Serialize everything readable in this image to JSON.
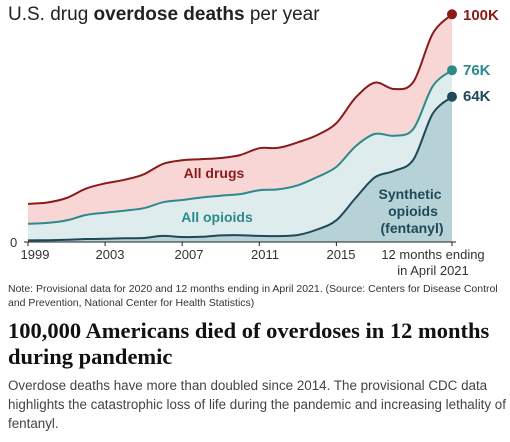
{
  "title": {
    "prefix": "U.S. drug ",
    "emphasis": "overdose deaths",
    "suffix": " per year"
  },
  "chart_data": {
    "type": "area",
    "x_ticks": [
      "1999",
      "2003",
      "2007",
      "2011",
      "2015",
      "12 months ending",
      "in April 2021"
    ],
    "y_ticks": [
      "0"
    ],
    "ylim": [
      0,
      100000
    ],
    "x": [
      "1999",
      "2000",
      "2001",
      "2002",
      "2003",
      "2004",
      "2005",
      "2006",
      "2007",
      "2008",
      "2009",
      "2010",
      "2011",
      "2012",
      "2013",
      "2014",
      "2015",
      "2016",
      "2017",
      "2018",
      "2019",
      "2020",
      "12 months ending in April 2021"
    ],
    "series": [
      {
        "name": "All drugs",
        "color": "#f9d6d6",
        "line_color": "#8b1a1a",
        "end_label": "100K",
        "values": [
          16800,
          17400,
          19400,
          23500,
          25800,
          27400,
          29800,
          34400,
          36000,
          36500,
          37000,
          38300,
          41300,
          41500,
          43900,
          47100,
          52400,
          63600,
          70200,
          67400,
          70600,
          91800,
          100300
        ]
      },
      {
        "name": "All opioids",
        "color": "#dfecee",
        "line_color": "#2b8a8a",
        "end_label": "76K",
        "values": [
          8000,
          8400,
          9500,
          11900,
          12900,
          13800,
          14900,
          17500,
          18500,
          19600,
          20400,
          21100,
          22800,
          23200,
          25000,
          28600,
          33100,
          42200,
          47600,
          46800,
          49900,
          68600,
          75700
        ]
      },
      {
        "name": "Synthetic opioids (fentanyl)",
        "color": "#b6d2d6",
        "line_color": "#1f4858",
        "end_label": "64K",
        "values": [
          700,
          800,
          950,
          1300,
          1400,
          1650,
          1750,
          2700,
          2200,
          2300,
          2900,
          3000,
          2700,
          2600,
          3100,
          5500,
          9600,
          19400,
          28500,
          31300,
          36400,
          56500,
          64000
        ]
      }
    ],
    "area_labels": [
      "All drugs",
      "All opioids",
      "Synthetic",
      "opioids",
      "(fentanyl)"
    ]
  },
  "note": "Note: Provisional data for 2020 and 12 months ending in April 2021. (Source: Centers for Disease Control and Prevention, National Center for Health Statistics)",
  "headline": "100,000 Americans died of overdoses in 12 months during pandemic",
  "dek": "Overdose deaths have more than doubled since 2014. The provisional CDC data highlights the catastrophic loss of life during the pandemic and increasing lethality of fentanyl."
}
